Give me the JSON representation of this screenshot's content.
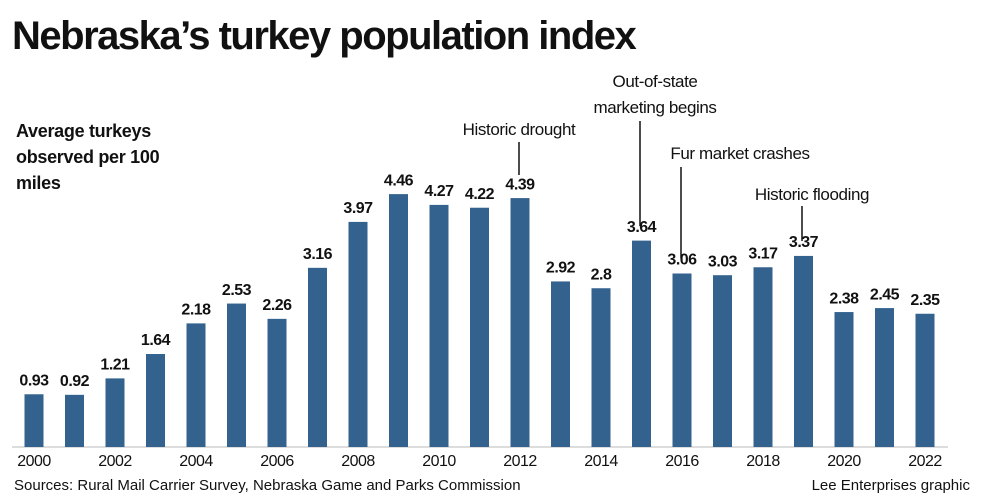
{
  "chart_data": {
    "type": "bar",
    "title": "Nebraska’s turkey population index",
    "y_label": "Average turkeys observed per 100 miles",
    "source": "Sources: Rural Mail Carrier Survey, Nebraska Game and Parks Commission",
    "credit": "Lee Enterprises graphic",
    "categories": [
      "2000",
      null,
      "2002",
      null,
      "2004",
      null,
      "2006",
      null,
      "2008",
      null,
      "2010",
      null,
      "2012",
      null,
      "2014",
      null,
      "2016",
      null,
      "2018",
      null,
      "2020",
      null,
      "2022"
    ],
    "values": [
      0.93,
      0.92,
      1.21,
      1.64,
      2.18,
      2.53,
      2.26,
      3.16,
      3.97,
      4.46,
      4.27,
      4.22,
      4.39,
      2.92,
      2.8,
      3.64,
      3.06,
      3.03,
      3.17,
      3.37,
      2.38,
      2.45,
      2.35
    ],
    "color": "#33628f",
    "annotations": [
      "Historic drought",
      "Out-of-state marketing begins",
      "Fur market crashes",
      "Historic flooding"
    ]
  }
}
